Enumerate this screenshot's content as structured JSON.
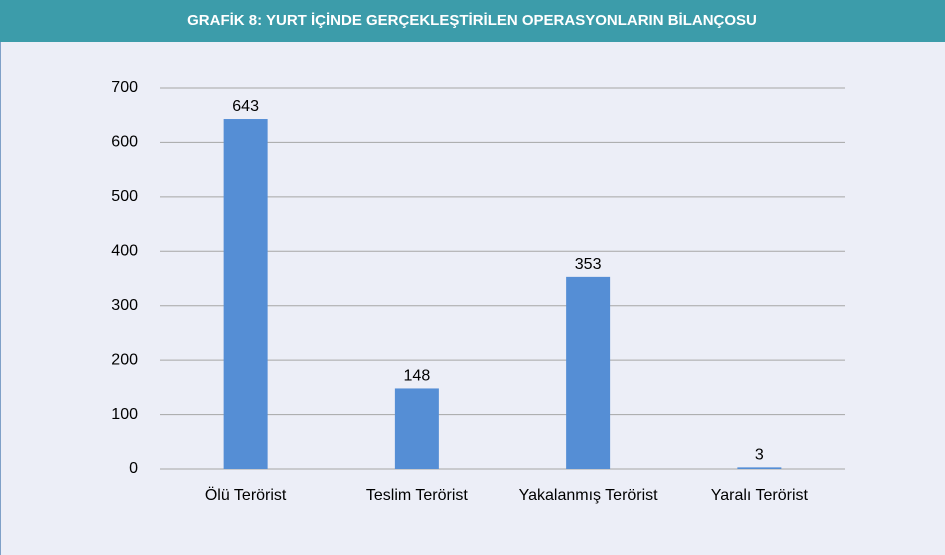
{
  "chart_data": {
    "type": "bar",
    "title": "GRAFİK 8: YURT İÇİNDE GERÇEKLEŞTİRİLEN OPERASYONLARIN BİLANÇOSU",
    "categories": [
      "Ölü Terörist",
      "Teslim Terörist",
      "Yakalanmış Terörist",
      "Yaralı Terörist"
    ],
    "values": [
      643,
      148,
      353,
      3
    ],
    "color": "#558ed5",
    "ylim": [
      0,
      700
    ],
    "yticks": [
      0,
      100,
      200,
      300,
      400,
      500,
      600,
      700
    ],
    "grid": true
  }
}
